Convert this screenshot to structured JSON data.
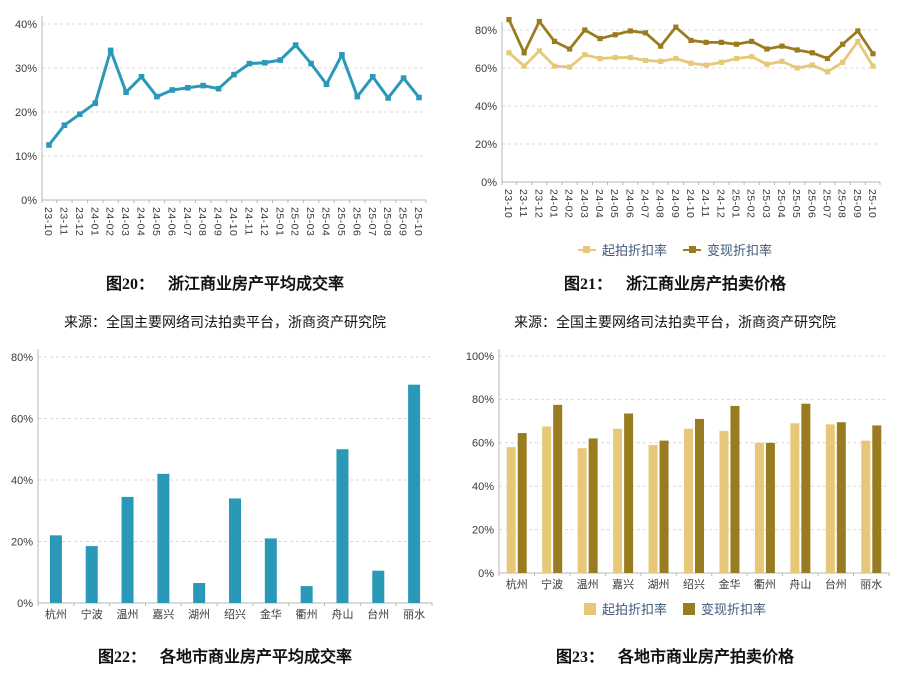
{
  "colors": {
    "teal": "#2a99b8",
    "light_gold": "#e6c878",
    "dark_gold": "#9a7c20",
    "grid": "#d9d9d9",
    "axis": "#b7b7b7",
    "tick_text": "#3a3a3a",
    "legend_text": "#3f5878"
  },
  "source_note": "来源：全国主要网络司法拍卖平台，浙商资产研究院",
  "figures": {
    "fig20": {
      "label": "图20：",
      "title": "浙江商业房产平均成交率"
    },
    "fig21": {
      "label": "图21：",
      "title": "浙江商业房产拍卖价格"
    },
    "fig22": {
      "label": "图22：",
      "title": "各地市商业房产平均成交率"
    },
    "fig23": {
      "label": "图23：",
      "title": "各地市商业房产拍卖价格"
    }
  },
  "legend": {
    "start_discount": "起拍折扣率",
    "realize_discount": "变现折扣率"
  },
  "chart_data": [
    {
      "id": "fig20",
      "type": "line",
      "title": "浙江商业房产平均成交率",
      "xlabel": "",
      "ylabel": "",
      "ylim": [
        0,
        40
      ],
      "ystep": 10,
      "grid": true,
      "categories": [
        "23-10",
        "23-11",
        "23-12",
        "24-01",
        "24-02",
        "24-03",
        "24-04",
        "24-05",
        "24-06",
        "24-07",
        "24-08",
        "24-09",
        "24-10",
        "24-11",
        "24-12",
        "25-01",
        "25-02",
        "25-03",
        "25-04",
        "25-05",
        "25-06",
        "25-07",
        "25-08",
        "25-09",
        "25-10"
      ],
      "series": [
        {
          "name": "平均成交率",
          "color_key": "teal",
          "values": [
            12.5,
            17,
            19.5,
            22,
            34,
            24.5,
            28,
            23.5,
            25,
            25.5,
            26,
            25.3,
            28.5,
            31,
            31.2,
            31.8,
            35.2,
            31,
            26.3,
            33,
            23.5,
            28,
            23.2,
            27.7,
            23.3
          ]
        }
      ]
    },
    {
      "id": "fig21",
      "type": "line",
      "title": "浙江商业房产拍卖价格",
      "xlabel": "",
      "ylabel": "",
      "ylim": [
        0,
        80
      ],
      "ystep": 20,
      "grid": true,
      "legend_position": "bottom",
      "categories": [
        "23-10",
        "23-11",
        "23-12",
        "24-01",
        "24-02",
        "24-03",
        "24-04",
        "24-05",
        "24-06",
        "24-07",
        "24-08",
        "24-09",
        "24-10",
        "24-11",
        "24-12",
        "25-01",
        "25-02",
        "25-03",
        "25-04",
        "25-05",
        "25-06",
        "25-07",
        "25-08",
        "25-09",
        "25-10"
      ],
      "series": [
        {
          "name": "起拍折扣率",
          "color_key": "light_gold",
          "values": [
            68,
            61,
            69,
            61,
            60.5,
            67,
            65,
            65.5,
            65.5,
            64,
            63.5,
            65,
            62.5,
            61.5,
            63,
            65,
            66,
            62,
            63.5,
            60,
            61.5,
            58,
            63,
            74,
            61
          ]
        },
        {
          "name": "变现折扣率",
          "color_key": "dark_gold",
          "values": [
            85.5,
            68,
            84.5,
            74,
            70,
            80,
            75.5,
            77.5,
            79.5,
            78.5,
            71.5,
            81.5,
            74.5,
            73.5,
            73.5,
            72.5,
            74,
            70,
            71.5,
            69.5,
            68,
            65,
            72.5,
            79.5,
            67.5
          ]
        }
      ]
    },
    {
      "id": "fig22",
      "type": "bar",
      "title": "各地市商业房产平均成交率",
      "xlabel": "",
      "ylabel": "",
      "ylim": [
        0,
        80
      ],
      "ystep": 20,
      "grid": true,
      "categories": [
        "杭州",
        "宁波",
        "温州",
        "嘉兴",
        "湖州",
        "绍兴",
        "金华",
        "衢州",
        "舟山",
        "台州",
        "丽水"
      ],
      "series": [
        {
          "name": "平均成交率",
          "color_key": "teal",
          "values": [
            22,
            18.5,
            34.5,
            42,
            6.5,
            34,
            21,
            5.5,
            50,
            10.5,
            71
          ]
        }
      ]
    },
    {
      "id": "fig23",
      "type": "bar",
      "title": "各地市商业房产拍卖价格",
      "xlabel": "",
      "ylabel": "",
      "ylim": [
        0,
        100
      ],
      "ystep": 20,
      "grid": true,
      "legend_position": "bottom",
      "categories": [
        "杭州",
        "宁波",
        "温州",
        "嘉兴",
        "湖州",
        "绍兴",
        "金华",
        "衢州",
        "舟山",
        "台州",
        "丽水"
      ],
      "series": [
        {
          "name": "起拍折扣率",
          "color_key": "light_gold",
          "values": [
            58,
            67.5,
            57.5,
            66.5,
            59,
            66.5,
            65.5,
            60,
            69,
            68.5,
            61
          ]
        },
        {
          "name": "变现折扣率",
          "color_key": "dark_gold",
          "values": [
            64.5,
            77.5,
            62,
            73.5,
            61,
            71,
            77,
            60,
            78,
            69.5,
            68
          ]
        }
      ]
    }
  ]
}
